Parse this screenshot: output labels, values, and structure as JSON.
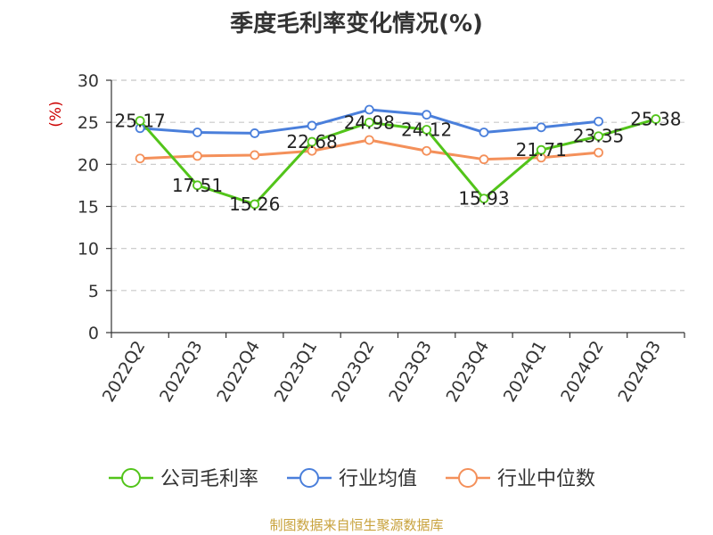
{
  "source": "制图数据来自恒生聚源数据库",
  "chart_data": {
    "type": "line",
    "title": "季度毛利率变化情况(%)",
    "ylabel": "(%)",
    "ylim": [
      0,
      30
    ],
    "yticks": [
      0,
      5,
      10,
      15,
      20,
      25,
      30
    ],
    "grid": true,
    "legend_position": "bottom",
    "categories": [
      "2022Q2",
      "2022Q3",
      "2022Q4",
      "2023Q1",
      "2023Q2",
      "2023Q3",
      "2023Q4",
      "2024Q1",
      "2024Q2",
      "2024Q3"
    ],
    "series": [
      {
        "name": "公司毛利率",
        "color": "#52c41a",
        "values": [
          25.17,
          17.51,
          15.26,
          22.68,
          24.98,
          24.12,
          15.93,
          21.71,
          23.35,
          25.38
        ],
        "data_labels": [
          "25.17",
          "17.51",
          "15.26",
          "22.68",
          "24.98",
          "24.12",
          "15.93",
          "21.71",
          "23.35",
          "25.38"
        ]
      },
      {
        "name": "行业均值",
        "color": "#4a7fdb",
        "values": [
          24.3,
          23.8,
          23.7,
          24.6,
          26.5,
          25.9,
          23.8,
          24.4,
          25.1,
          null
        ]
      },
      {
        "name": "行业中位数",
        "color": "#f4905a",
        "values": [
          20.7,
          21.0,
          21.1,
          21.6,
          22.9,
          21.6,
          20.6,
          20.8,
          21.4,
          null
        ]
      }
    ]
  }
}
